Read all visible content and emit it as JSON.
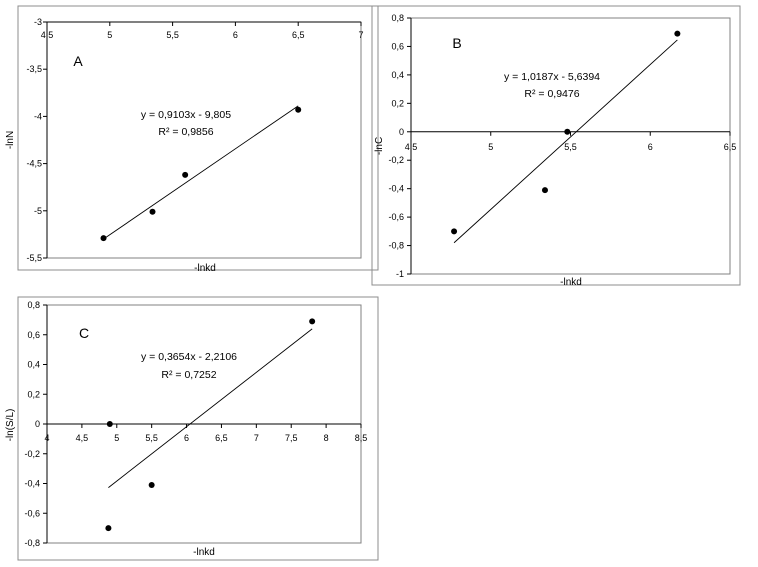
{
  "chart_data": [
    {
      "type": "scatter",
      "panel_label": "A",
      "xlabel": "-lnkd",
      "ylabel": "-lnN",
      "xlim": [
        4.5,
        7
      ],
      "ylim": [
        -5.5,
        -3
      ],
      "xticks": [
        "4,5",
        "5",
        "5,5",
        "6",
        "6,5",
        "7"
      ],
      "yticks": [
        "-3",
        "-3,5",
        "-4",
        "-4,5",
        "-5",
        "-5,5"
      ],
      "x_axis_crossing": -3,
      "points": [
        {
          "x": 4.95,
          "y": -5.29
        },
        {
          "x": 5.34,
          "y": -5.01
        },
        {
          "x": 5.6,
          "y": -4.62
        },
        {
          "x": 6.5,
          "y": -3.93
        }
      ],
      "trendline": {
        "slope": 0.9103,
        "intercept": -9.805,
        "x_range": [
          4.95,
          6.5
        ]
      },
      "equation": "y = 0,9103x - 9,805",
      "r_squared": "R² = 0,9856"
    },
    {
      "type": "scatter",
      "panel_label": "B",
      "xlabel": "-lnkd",
      "ylabel": "-lnC",
      "xlim": [
        4.5,
        6.5
      ],
      "ylim": [
        -1,
        0.8
      ],
      "xticks": [
        "4,5",
        "5",
        "5,5",
        "6",
        "6,5"
      ],
      "yticks": [
        "0,8",
        "0,6",
        "0,4",
        "0,2",
        "0",
        "-0,2",
        "-0,4",
        "-0,6",
        "-0,8",
        "-1"
      ],
      "x_axis_crossing": 0,
      "points": [
        {
          "x": 4.77,
          "y": -0.7
        },
        {
          "x": 5.34,
          "y": -0.41
        },
        {
          "x": 5.48,
          "y": 0.0
        },
        {
          "x": 6.17,
          "y": 0.69
        }
      ],
      "trendline": {
        "slope": 1.0187,
        "intercept": -5.6394,
        "x_range": [
          4.77,
          6.17
        ]
      },
      "equation": "y = 1,0187x - 5,6394",
      "r_squared": "R² = 0,9476"
    },
    {
      "type": "scatter",
      "panel_label": "C",
      "xlabel": "-lnkd",
      "ylabel": "-ln(S/L)",
      "xlim": [
        4,
        8.5
      ],
      "ylim": [
        -0.8,
        0.8
      ],
      "xticks": [
        "4",
        "4,5",
        "5",
        "5,5",
        "6",
        "6,5",
        "7",
        "7,5",
        "8",
        "8,5"
      ],
      "yticks": [
        "0,8",
        "0,6",
        "0,4",
        "0,2",
        "0",
        "-0,2",
        "-0,4",
        "-0,6",
        "-0,8"
      ],
      "x_axis_crossing": 0,
      "points": [
        {
          "x": 4.88,
          "y": -0.7
        },
        {
          "x": 4.9,
          "y": 0.0
        },
        {
          "x": 5.5,
          "y": -0.41
        },
        {
          "x": 7.8,
          "y": 0.69
        }
      ],
      "trendline": {
        "slope": 0.3654,
        "intercept": -2.2106,
        "x_range": [
          4.88,
          7.8
        ]
      },
      "equation": "y = 0,3654x - 2,2106",
      "r_squared": "R² = 0,7252"
    }
  ]
}
